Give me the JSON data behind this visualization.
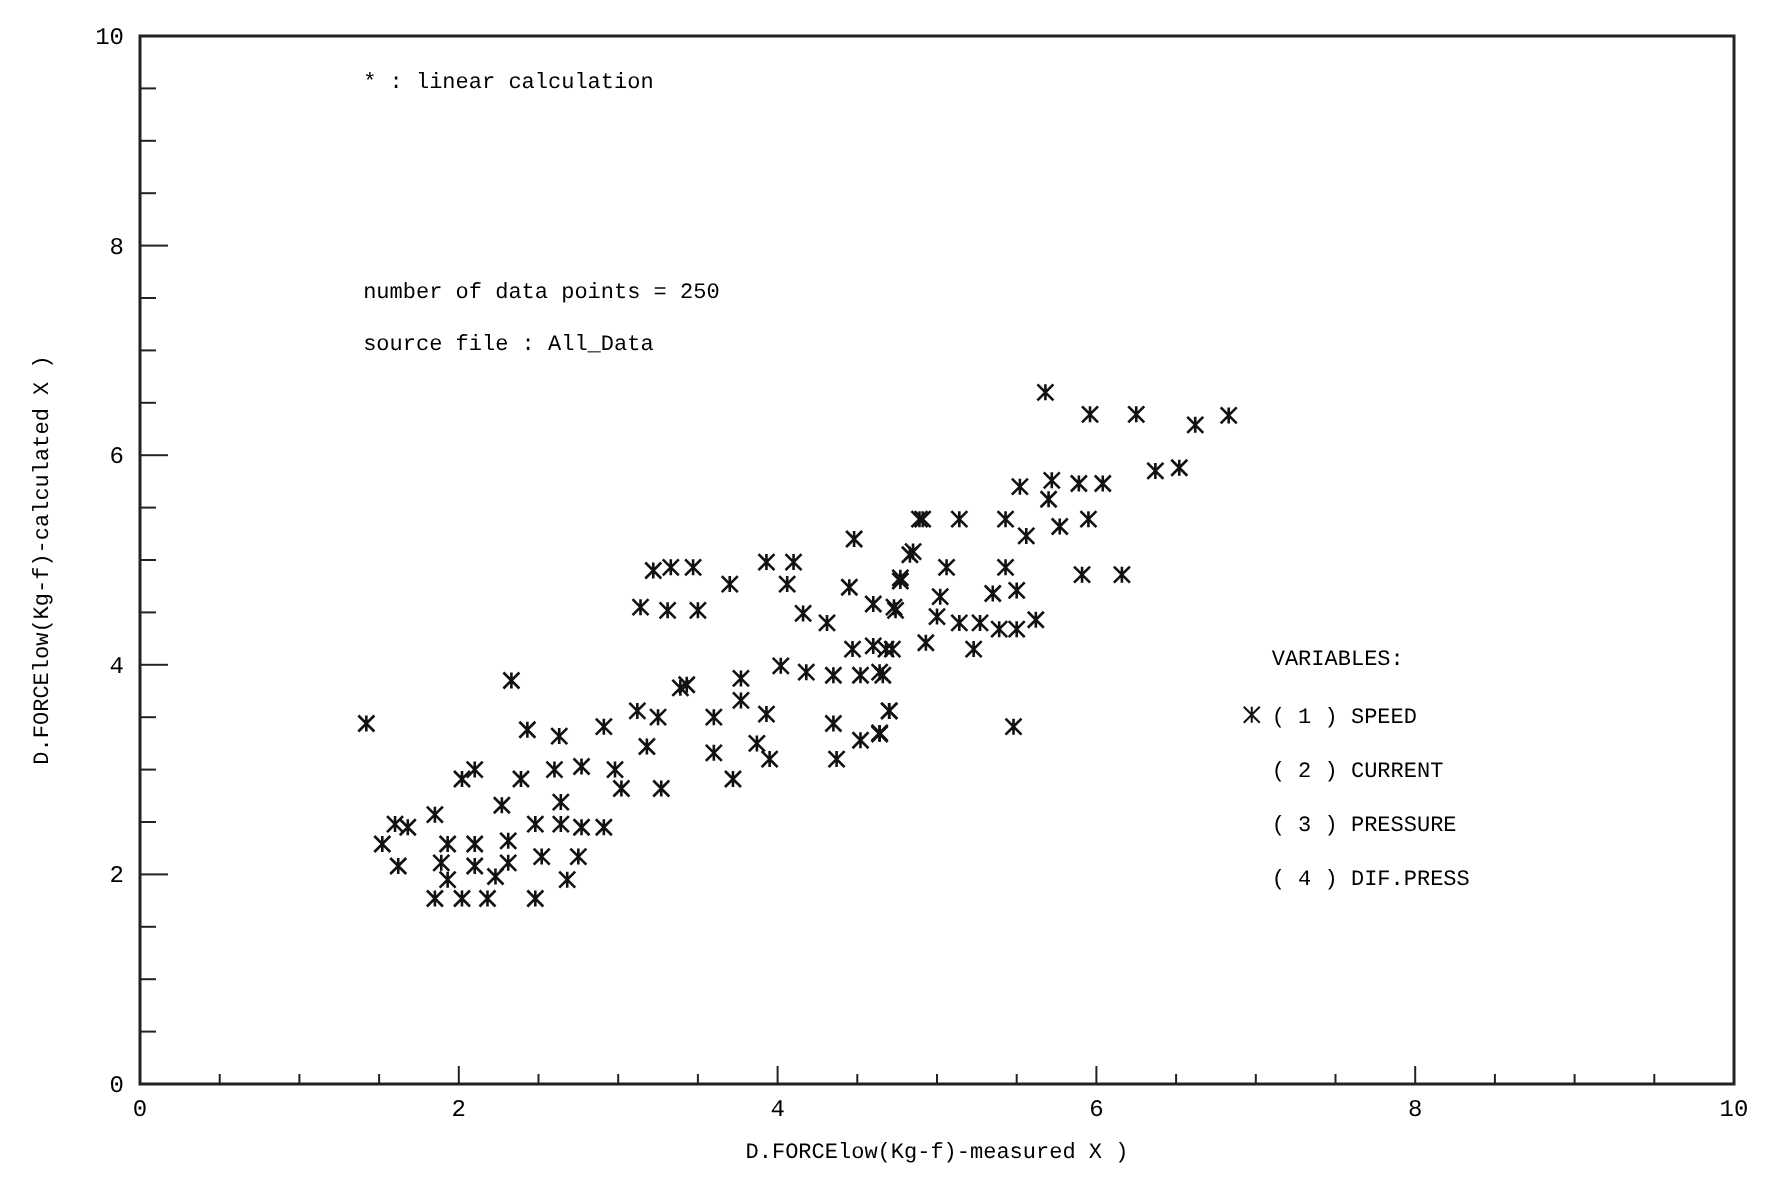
{
  "chart_data": {
    "type": "scatter",
    "xlabel": "D.FORCElow(Kg-f)-measured X  )",
    "ylabel": "D.FORCElow(Kg-f)-calculated X  )",
    "legend_title": "VARIABLES:",
    "legend": "right",
    "marker": "cross",
    "grid": false,
    "xlim": [
      0,
      10
    ],
    "ylim": [
      0,
      10
    ],
    "xticks": [
      0,
      {
        "value": 0.5,
        "label": null
      },
      {
        "value": 1,
        "label": null
      },
      {
        "value": 1.5,
        "label": null
      },
      2,
      {
        "value": 2.5,
        "label": null
      },
      {
        "value": 3,
        "label": null
      },
      {
        "value": 3.5,
        "label": null
      },
      4,
      {
        "value": 4.5,
        "label": null
      },
      {
        "value": 5,
        "label": null
      },
      {
        "value": 5.5,
        "label": null
      },
      6,
      {
        "value": 6.5,
        "label": null
      },
      {
        "value": 7,
        "label": null
      },
      {
        "value": 7.5,
        "label": null
      },
      8,
      {
        "value": 8.5,
        "label": null
      },
      {
        "value": 9,
        "label": null
      },
      {
        "value": 9.5,
        "label": null
      },
      10
    ],
    "yticks": [
      0,
      {
        "value": 0.5,
        "label": null
      },
      {
        "value": 1,
        "label": null
      },
      {
        "value": 1.5,
        "label": null
      },
      2,
      {
        "value": 2.5,
        "label": null
      },
      {
        "value": 3,
        "label": null
      },
      {
        "value": 3.5,
        "label": null
      },
      4,
      {
        "value": 4.5,
        "label": null
      },
      {
        "value": 5,
        "label": null
      },
      {
        "value": 5.5,
        "label": null
      },
      6,
      {
        "value": 6.5,
        "label": null
      },
      {
        "value": 7,
        "label": null
      },
      {
        "value": 7.5,
        "label": null
      },
      8,
      {
        "value": 8.5,
        "label": null
      },
      {
        "value": 9,
        "label": null
      },
      {
        "value": 9.5,
        "label": null
      },
      10
    ],
    "annotations": [
      "* : linear calculation",
      "number of data points =  250",
      "source file : All_Data",
      "( 2 ) CURRENT",
      "( 3 ) PRESSURE",
      "( 4 ) DIF.PRESS"
    ],
    "series": [
      {
        "name": "( 1 ) SPEED",
        "color": "#111111",
        "x": [
          1.42,
          2.33,
          2.43,
          2.63,
          2.91,
          3.12,
          3.25,
          3.39,
          3.6,
          3.77,
          3.77,
          3.93,
          3.18,
          3.02,
          3.27,
          3.6,
          3.72,
          3.95,
          3.87,
          4.35,
          4.37,
          4.52,
          4.64,
          4.7,
          3.22,
          3.33,
          3.47,
          3.14,
          3.31,
          3.5,
          3.7,
          3.93,
          4.1,
          4.06,
          4.48,
          4.89,
          4.83,
          4.45,
          4.6,
          4.74,
          4.77,
          4.16,
          4.31,
          4.47,
          4.6,
          4.72,
          4.02,
          4.18,
          4.35,
          4.52,
          4.64,
          3.43,
          2.02,
          2.1,
          2.27,
          2.39,
          2.6,
          2.77,
          2.98,
          2.64,
          2.77,
          2.91,
          2.64,
          2.48,
          1.6,
          1.68,
          1.52,
          1.85,
          1.62,
          1.93,
          2.1,
          2.31,
          1.89,
          2.1,
          2.31,
          2.52,
          2.75,
          1.93,
          2.23,
          2.68,
          1.85,
          2.02,
          2.18,
          2.48,
          5.68,
          5.96,
          6.25,
          6.62,
          6.83,
          6.37,
          6.52,
          5.52,
          5.72,
          5.89,
          6.04,
          5.7,
          4.91,
          5.14,
          5.43,
          5.56,
          5.77,
          5.95,
          4.85,
          5.06,
          5.43,
          5.91,
          6.16,
          4.77,
          5.35,
          5.5,
          5.62,
          5.02,
          5.0,
          5.14,
          5.27,
          5.39,
          5.5,
          4.93,
          5.23,
          4.73,
          4.68,
          4.66,
          4.7,
          4.64,
          5.48
        ],
        "values": [
          3.44,
          3.85,
          3.38,
          3.32,
          3.41,
          3.56,
          3.5,
          3.78,
          3.5,
          3.66,
          3.87,
          3.53,
          3.22,
          2.82,
          2.82,
          3.16,
          2.91,
          3.1,
          3.25,
          3.44,
          3.1,
          3.28,
          3.34,
          3.56,
          4.9,
          4.93,
          4.93,
          4.55,
          4.52,
          4.52,
          4.77,
          4.98,
          4.98,
          4.77,
          5.2,
          5.39,
          5.05,
          4.74,
          4.58,
          4.52,
          4.8,
          4.49,
          4.4,
          4.15,
          4.18,
          4.15,
          3.99,
          3.93,
          3.9,
          3.9,
          3.93,
          3.81,
          2.91,
          3.0,
          2.66,
          2.91,
          3.0,
          3.03,
          3.0,
          2.69,
          2.45,
          2.45,
          2.48,
          2.48,
          2.48,
          2.45,
          2.29,
          2.57,
          2.08,
          2.29,
          2.29,
          2.32,
          2.11,
          2.08,
          2.11,
          2.17,
          2.17,
          1.95,
          1.98,
          1.95,
          1.77,
          1.77,
          1.77,
          1.77,
          6.6,
          6.39,
          6.39,
          6.29,
          6.38,
          5.85,
          5.88,
          5.7,
          5.76,
          5.73,
          5.73,
          5.58,
          5.39,
          5.39,
          5.39,
          5.23,
          5.32,
          5.39,
          5.08,
          4.93,
          4.93,
          4.86,
          4.86,
          4.83,
          4.68,
          4.71,
          4.43,
          4.65,
          4.46,
          4.4,
          4.4,
          4.34,
          4.34,
          4.21,
          4.15,
          4.55,
          4.15,
          3.9,
          3.56,
          3.35,
          3.41
        ]
      }
    ]
  }
}
